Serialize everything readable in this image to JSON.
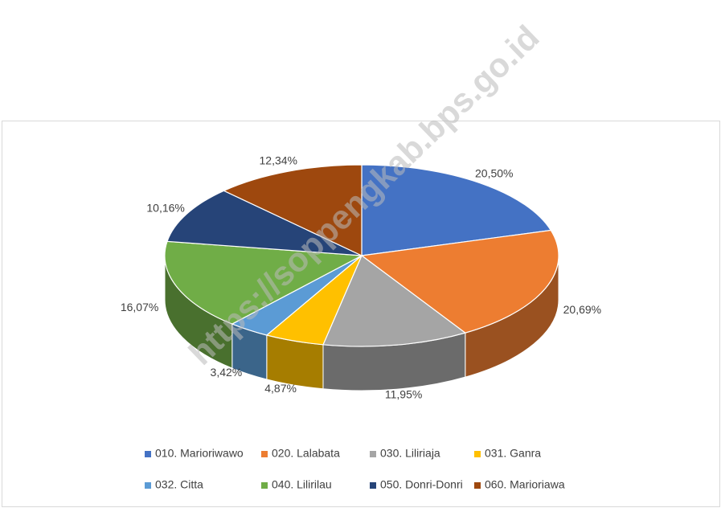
{
  "chart_data": {
    "type": "pie3d",
    "categories": [
      "010. Marioriwawo",
      "020. Lalabata",
      "030. Liliriaja",
      "031. Ganra",
      "032. Citta",
      "040. Lilirilau",
      "050. Donri-Donri",
      "060. Marioriawa"
    ],
    "values": [
      20.5,
      20.69,
      11.95,
      4.87,
      3.42,
      16.07,
      10.16,
      12.34
    ],
    "value_labels": [
      "20,50%",
      "20,69%",
      "11,95%",
      "4,87%",
      "3,42%",
      "16,07%",
      "10,16%",
      "12,34%"
    ],
    "colors": [
      "#4472c4",
      "#ed7d31",
      "#a5a5a5",
      "#ffc000",
      "#5b9bd5",
      "#70ad47",
      "#264478",
      "#9e480e"
    ],
    "legend": "bottom",
    "watermark": "https://soppengkab.bps.go.id"
  }
}
